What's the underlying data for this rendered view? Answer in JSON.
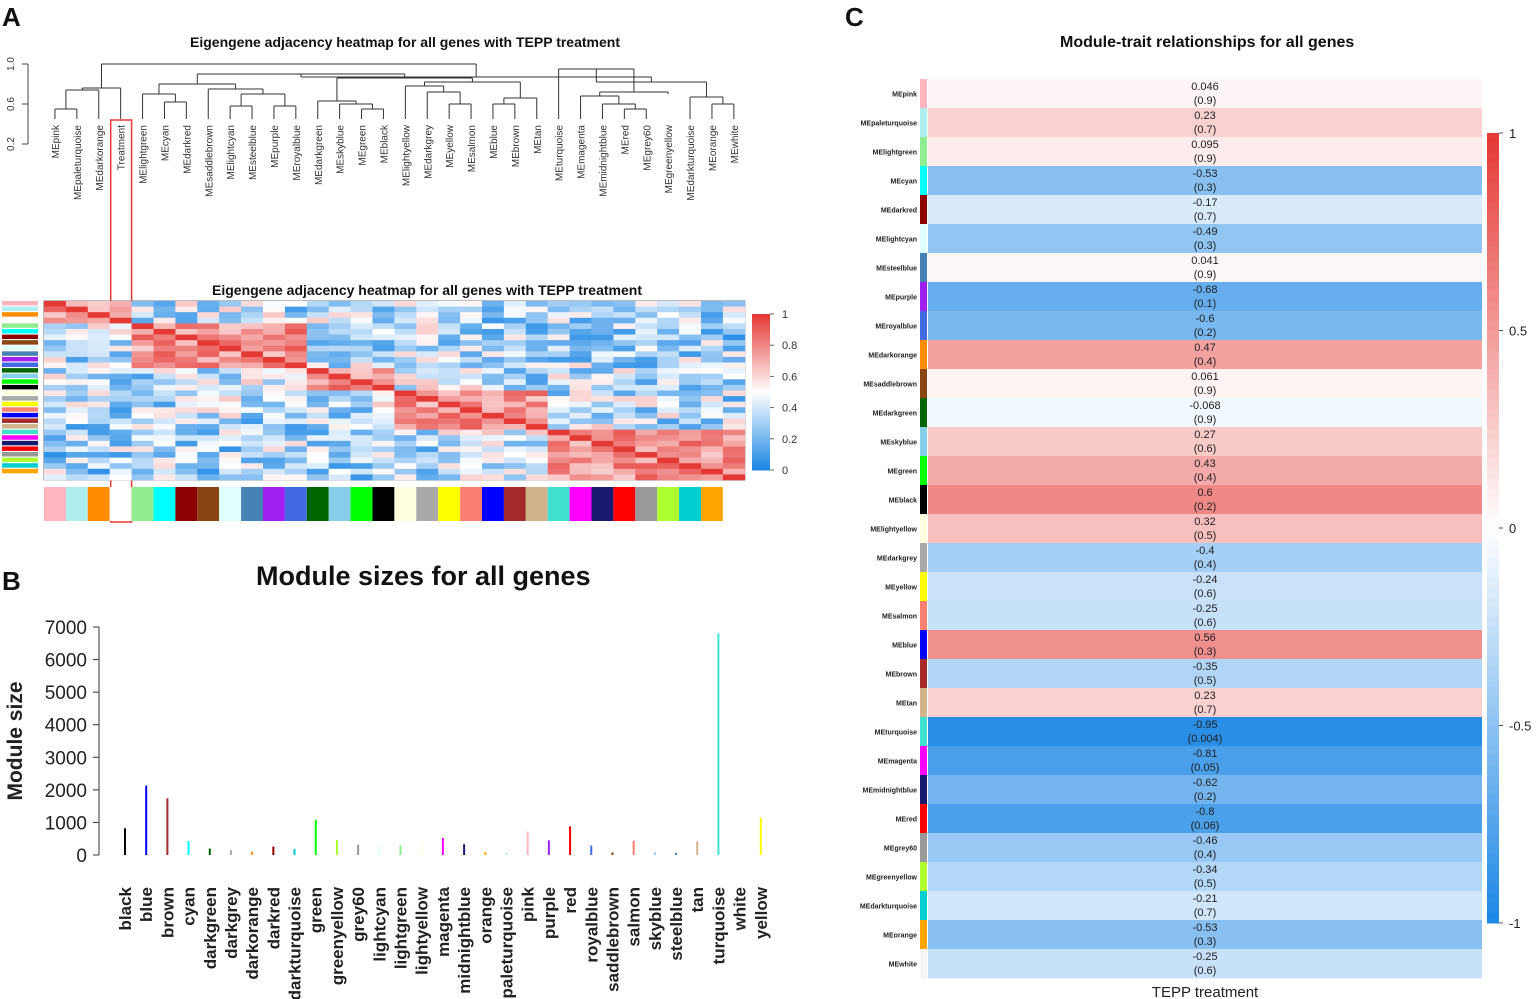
{
  "panels": {
    "a": "A",
    "b": "B",
    "c": "C"
  },
  "chart_data": [
    {
      "type": "dendrogram",
      "title": "Eigengene adjacency heatmap for all genes with TEPP treatment",
      "y_ticks": [
        "0.2",
        "0.6",
        "1.0"
      ],
      "ylim": [
        0.2,
        1.0
      ],
      "leaves": [
        "MEpink",
        "MEpaleturquoise",
        "MEdarkorange",
        "Treatment",
        "MElightgreen",
        "MEcyan",
        "MEdarkred",
        "MEsaddlebrown",
        "MElightcyan",
        "MEsteelblue",
        "MEpurple",
        "MEroyalblue",
        "MEdarkgreen",
        "MEskyblue",
        "MEgreen",
        "MEblack",
        "MElightyellow",
        "MEdarkgrey",
        "MEyellow",
        "MEsalmon",
        "MEblue",
        "MEbrown",
        "MEtan",
        "MEturquoise",
        "MEmagenta",
        "MEmidnightblue",
        "MEred",
        "MEgrey60",
        "MEgreenyellow",
        "MEdarkturquoise",
        "MEorange",
        "MEwhite"
      ],
      "highlighted_leaf": "Treatment",
      "highlight_color": "#e53935"
    },
    {
      "type": "heatmap",
      "title": "Eigengene adjacency heatmap for all genes with TEPP treatment",
      "legend_ticks": [
        "0",
        "0.2",
        "0.4",
        "0.6",
        "0.8",
        "1"
      ],
      "value_range": [
        0,
        1
      ],
      "color_low": "#1e88e5",
      "color_mid": "#ffffff",
      "color_high": "#e53935",
      "column_colors": [
        "#ffb6c1",
        "#afeeee",
        "#ff8c00",
        "#ffffff",
        "#90ee90",
        "#00ffff",
        "#8b0000",
        "#8b4513",
        "#e0ffff",
        "#4682b4",
        "#a020f0",
        "#4169e1",
        "#006400",
        "#87ceeb",
        "#00ff00",
        "#000000",
        "#ffffe0",
        "#a9a9a9",
        "#ffff00",
        "#fa8072",
        "#0000ff",
        "#a52a2a",
        "#d2b48c",
        "#40e0d0",
        "#ff00ff",
        "#191970",
        "#ff0000",
        "#999999",
        "#adff2f",
        "#00ced1",
        "#ffa500",
        "#ffffff"
      ]
    },
    {
      "type": "bar",
      "title": "Module sizes for all genes",
      "ylabel": "Module size",
      "xlabel": "",
      "ylim": [
        0,
        7000
      ],
      "y_ticks": [
        "0",
        "1000",
        "2000",
        "3000",
        "4000",
        "5000",
        "6000",
        "7000"
      ],
      "categories": [
        "black",
        "blue",
        "brown",
        "cyan",
        "darkgreen",
        "darkgrey",
        "darkorange",
        "darkred",
        "darkturquoise",
        "green",
        "greenyellow",
        "grey60",
        "lightcyan",
        "lightgreen",
        "lightyellow",
        "magenta",
        "midnightblue",
        "orange",
        "paleturquoise",
        "pink",
        "purple",
        "red",
        "royalblue",
        "saddlebrown",
        "salmon",
        "skyblue",
        "steelblue",
        "tan",
        "turquoise",
        "white",
        "yellow"
      ],
      "values": [
        820,
        2130,
        1740,
        430,
        200,
        150,
        100,
        260,
        190,
        1080,
        460,
        320,
        300,
        300,
        280,
        520,
        330,
        90,
        70,
        720,
        450,
        880,
        290,
        80,
        440,
        80,
        70,
        420,
        6800,
        20,
        1140
      ],
      "colors": [
        "#000000",
        "#0000ff",
        "#a52a2a",
        "#00ffff",
        "#006400",
        "#a9a9a9",
        "#ff8c00",
        "#8b0000",
        "#00ced1",
        "#00ff00",
        "#adff2f",
        "#999999",
        "#e0ffff",
        "#90ee90",
        "#ffffe0",
        "#ff00ff",
        "#191970",
        "#ffa500",
        "#afeeee",
        "#ffb6c1",
        "#a020f0",
        "#ff0000",
        "#4169e1",
        "#8b4513",
        "#fa8072",
        "#87ceeb",
        "#4682b4",
        "#d2b48c",
        "#40e0d0",
        "#f0f0f0",
        "#ffff00"
      ]
    },
    {
      "type": "heatmap",
      "title": "Module-trait relationships for all genes",
      "xlabel": "TEPP treatment",
      "value_range": [
        -1,
        1
      ],
      "legend_ticks": [
        "-1",
        "-0.5",
        "0",
        "0.5",
        "1"
      ],
      "color_low": "#1e88e5",
      "color_mid": "#ffffff",
      "color_high": "#e53935",
      "rows": [
        {
          "module": "MEpink",
          "color": "#ffb6c1",
          "r": "0.046",
          "p": "(0.9)",
          "v": 0.046
        },
        {
          "module": "MEpaleturquoise",
          "color": "#afeeee",
          "r": "0.23",
          "p": "(0.7)",
          "v": 0.23
        },
        {
          "module": "MElightgreen",
          "color": "#90ee90",
          "r": "0.095",
          "p": "(0.9)",
          "v": 0.095
        },
        {
          "module": "MEcyan",
          "color": "#00ffff",
          "r": "-0.53",
          "p": "(0.3)",
          "v": -0.53
        },
        {
          "module": "MEdarkred",
          "color": "#8b0000",
          "r": "-0.17",
          "p": "(0.7)",
          "v": -0.17
        },
        {
          "module": "MElightcyan",
          "color": "#e0ffff",
          "r": "-0.49",
          "p": "(0.3)",
          "v": -0.49
        },
        {
          "module": "MEsteelblue",
          "color": "#4682b4",
          "r": "0.041",
          "p": "(0.9)",
          "v": 0.041
        },
        {
          "module": "MEpurple",
          "color": "#a020f0",
          "r": "-0.68",
          "p": "(0.1)",
          "v": -0.68
        },
        {
          "module": "MEroyalblue",
          "color": "#4169e1",
          "r": "-0.6",
          "p": "(0.2)",
          "v": -0.6
        },
        {
          "module": "MEdarkorange",
          "color": "#ff8c00",
          "r": "0.47",
          "p": "(0.4)",
          "v": 0.47
        },
        {
          "module": "MEsaddlebrown",
          "color": "#8b4513",
          "r": "0.061",
          "p": "(0.9)",
          "v": 0.061
        },
        {
          "module": "MEdarkgreen",
          "color": "#006400",
          "r": "-0.068",
          "p": "(0.9)",
          "v": -0.068
        },
        {
          "module": "MEskyblue",
          "color": "#87ceeb",
          "r": "0.27",
          "p": "(0.6)",
          "v": 0.27
        },
        {
          "module": "MEgreen",
          "color": "#00ff00",
          "r": "0.43",
          "p": "(0.4)",
          "v": 0.43
        },
        {
          "module": "MEblack",
          "color": "#000000",
          "r": "0.6",
          "p": "(0.2)",
          "v": 0.6
        },
        {
          "module": "MElightyellow",
          "color": "#ffffe0",
          "r": "0.32",
          "p": "(0.5)",
          "v": 0.32
        },
        {
          "module": "MEdarkgrey",
          "color": "#a9a9a9",
          "r": "-0.4",
          "p": "(0.4)",
          "v": -0.4
        },
        {
          "module": "MEyellow",
          "color": "#ffff00",
          "r": "-0.24",
          "p": "(0.6)",
          "v": -0.24
        },
        {
          "module": "MEsalmon",
          "color": "#fa8072",
          "r": "-0.25",
          "p": "(0.6)",
          "v": -0.25
        },
        {
          "module": "MEblue",
          "color": "#0000ff",
          "r": "0.56",
          "p": "(0.3)",
          "v": 0.56
        },
        {
          "module": "MEbrown",
          "color": "#a52a2a",
          "r": "-0.35",
          "p": "(0.5)",
          "v": -0.35
        },
        {
          "module": "MEtan",
          "color": "#d2b48c",
          "r": "0.23",
          "p": "(0.7)",
          "v": 0.23
        },
        {
          "module": "MEturquoise",
          "color": "#40e0d0",
          "r": "-0.95",
          "p": "(0.004)",
          "v": -0.95
        },
        {
          "module": "MEmagenta",
          "color": "#ff00ff",
          "r": "-0.81",
          "p": "(0.05)",
          "v": -0.81
        },
        {
          "module": "MEmidnightblue",
          "color": "#191970",
          "r": "-0.62",
          "p": "(0.2)",
          "v": -0.62
        },
        {
          "module": "MEred",
          "color": "#ff0000",
          "r": "-0.8",
          "p": "(0.06)",
          "v": -0.8
        },
        {
          "module": "MEgrey60",
          "color": "#999999",
          "r": "-0.46",
          "p": "(0.4)",
          "v": -0.46
        },
        {
          "module": "MEgreenyellow",
          "color": "#adff2f",
          "r": "-0.34",
          "p": "(0.5)",
          "v": -0.34
        },
        {
          "module": "MEdarkturquoise",
          "color": "#00ced1",
          "r": "-0.21",
          "p": "(0.7)",
          "v": -0.21
        },
        {
          "module": "MEorange",
          "color": "#ffa500",
          "r": "-0.53",
          "p": "(0.3)",
          "v": -0.53
        },
        {
          "module": "MEwhite",
          "color": "#f5f5f5",
          "r": "-0.25",
          "p": "(0.6)",
          "v": -0.25
        }
      ]
    }
  ]
}
